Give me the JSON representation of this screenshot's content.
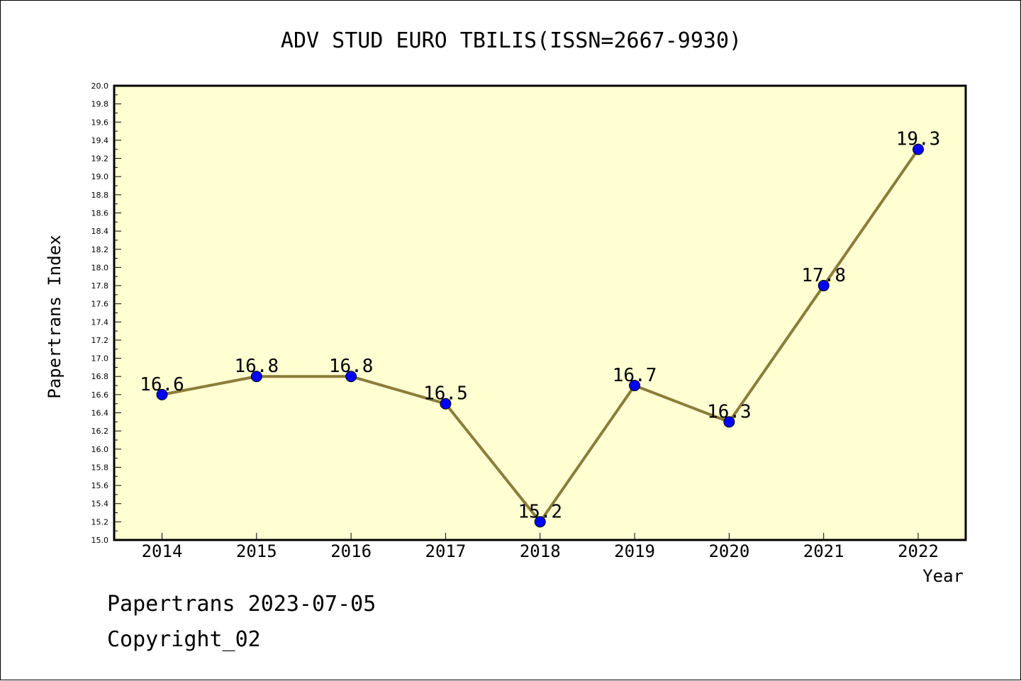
{
  "chart_data": {
    "type": "line",
    "title": "ADV STUD EURO TBILIS(ISSN=2667-9930)",
    "xlabel": "Year",
    "ylabel": "Papertrans Index",
    "categories": [
      "2014",
      "2015",
      "2016",
      "2017",
      "2018",
      "2019",
      "2020",
      "2021",
      "2022"
    ],
    "series": [
      {
        "values": [
          16.6,
          16.8,
          16.8,
          16.5,
          15.2,
          16.7,
          16.3,
          17.8,
          19.3
        ]
      }
    ],
    "data_labels": [
      "16.6",
      "16.8",
      "16.8",
      "16.5",
      "15.2",
      "16.7",
      "16.3",
      "17.8",
      "19.3"
    ],
    "ylim": [
      15.0,
      20.0
    ],
    "yticks": [
      "15.0",
      "15.2",
      "15.4",
      "15.6",
      "15.8",
      "16.0",
      "16.2",
      "16.4",
      "16.6",
      "16.8",
      "17.0",
      "17.2",
      "17.4",
      "17.6",
      "17.8",
      "18.0",
      "18.2",
      "18.4",
      "18.6",
      "18.8",
      "19.0",
      "19.2",
      "19.4",
      "19.6",
      "19.8",
      "20.0"
    ],
    "grid": false,
    "colors": {
      "plot_background": "#ffffd2",
      "line": "#8b7d3a",
      "marker": "#0000ff"
    }
  },
  "footer": {
    "line1": "Papertrans 2023-07-05",
    "line2": "Copyright_02"
  }
}
